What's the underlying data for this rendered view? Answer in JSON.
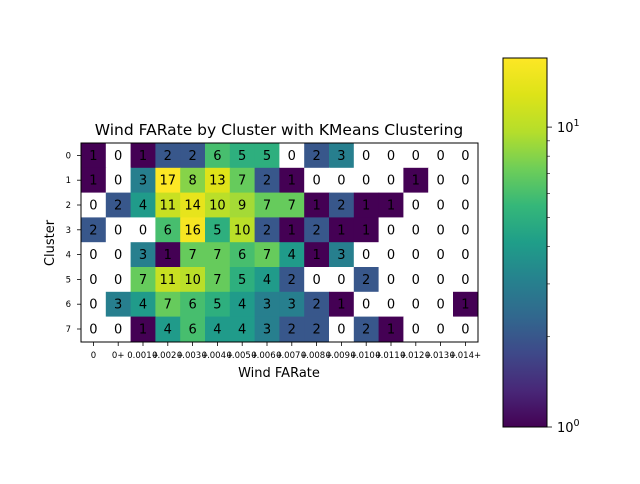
{
  "chart_data": {
    "type": "heatmap",
    "title": "Wind FARate by Cluster with KMeans Clustering",
    "xlabel": "Wind FARate",
    "ylabel": "Cluster",
    "x_tick_labels": [
      "0",
      "0+",
      "0.001+",
      "0.002+",
      "0.003+",
      "0.004+",
      "0.005+",
      "0.006+",
      "0.007+",
      "0.008+",
      "0.009+",
      "0.010+",
      "0.011+",
      "0.012+",
      "0.013+",
      "0.014+"
    ],
    "y_tick_labels": [
      "0",
      "1",
      "2",
      "3",
      "4",
      "5",
      "6",
      "7"
    ],
    "values": [
      [
        1,
        0,
        1,
        2,
        2,
        6,
        5,
        5,
        0,
        2,
        3,
        0,
        0,
        0,
        0,
        0
      ],
      [
        1,
        0,
        3,
        17,
        8,
        13,
        7,
        2,
        1,
        0,
        0,
        0,
        0,
        1,
        0,
        0
      ],
      [
        0,
        2,
        4,
        11,
        14,
        10,
        9,
        7,
        7,
        1,
        2,
        1,
        1,
        0,
        0,
        0
      ],
      [
        2,
        0,
        0,
        6,
        16,
        5,
        10,
        2,
        1,
        2,
        1,
        1,
        0,
        0,
        0,
        0
      ],
      [
        0,
        0,
        3,
        1,
        7,
        7,
        6,
        7,
        4,
        1,
        3,
        0,
        0,
        0,
        0,
        0
      ],
      [
        0,
        0,
        7,
        11,
        10,
        7,
        5,
        4,
        2,
        0,
        0,
        2,
        0,
        0,
        0,
        0
      ],
      [
        0,
        3,
        4,
        7,
        6,
        5,
        4,
        3,
        3,
        2,
        1,
        0,
        0,
        0,
        0,
        1
      ],
      [
        0,
        0,
        1,
        4,
        6,
        4,
        4,
        3,
        2,
        2,
        0,
        2,
        1,
        0,
        0,
        0
      ]
    ],
    "color_scale": "log",
    "colormap": "viridis",
    "zero_color": "#ffffff",
    "colorbar_range": [
      1,
      17
    ],
    "colorbar_tick_labels": [
      "10",
      "0",
      "1"
    ],
    "colorbar_tick_exponents": [
      "0",
      "1"
    ]
  }
}
